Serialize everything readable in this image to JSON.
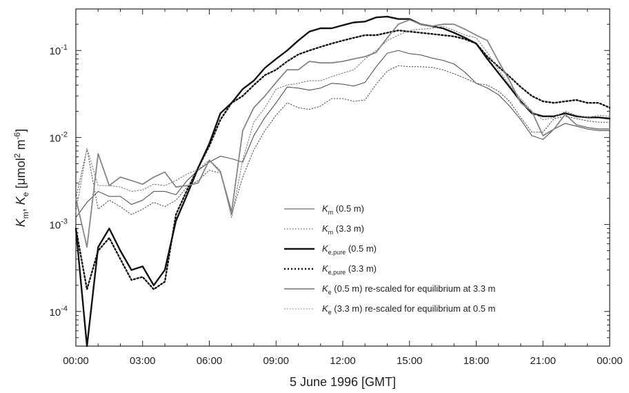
{
  "chart_data": {
    "type": "line",
    "xlabel": "5 June 1996 [GMT]",
    "ylabel": {
      "html": "K_m, K_e [μmol^2 m^-6]",
      "parts": {
        "k1": "K",
        "s1": "m",
        "sep": ", ",
        "k2": "K",
        "s2": "e",
        "open": " [μmol",
        "sup1": "2",
        "mid": " m",
        "sup2": "-6",
        "close": "]"
      }
    },
    "x_range_hours": [
      0,
      24
    ],
    "x_ticks": [
      {
        "h": 0,
        "label": "00:00"
      },
      {
        "h": 3,
        "label": "03:00"
      },
      {
        "h": 6,
        "label": "06:00"
      },
      {
        "h": 9,
        "label": "09:00"
      },
      {
        "h": 12,
        "label": "12:00"
      },
      {
        "h": 15,
        "label": "15:00"
      },
      {
        "h": 18,
        "label": "18:00"
      },
      {
        "h": 21,
        "label": "21:00"
      },
      {
        "h": 24,
        "label": "00:00"
      }
    ],
    "y_scale": "log",
    "y_range": [
      4e-05,
      0.3
    ],
    "y_ticks": [
      {
        "v": 0.0001,
        "base": "10",
        "exp": "-4"
      },
      {
        "v": 0.001,
        "base": "10",
        "exp": "-3"
      },
      {
        "v": 0.01,
        "base": "10",
        "exp": "-2"
      },
      {
        "v": 0.1,
        "base": "10",
        "exp": "-1"
      }
    ],
    "legend_position": "bottom-right",
    "series": [
      {
        "name": "K_m (0.5 m)",
        "legend": {
          "k": "K",
          "sub": "m",
          "rest": " (0.5 m)"
        },
        "color": "#444444",
        "width": 1,
        "dash": "",
        "x": [
          0,
          0.5,
          1,
          1.5,
          2,
          2.5,
          3,
          3.5,
          4,
          4.5,
          5,
          5.5,
          6,
          6.5,
          7,
          7.5,
          8,
          8.5,
          9,
          9.5,
          10,
          10.5,
          11,
          11.5,
          12,
          12.5,
          13,
          13.5,
          14,
          14.5,
          15,
          15.5,
          16,
          16.5,
          17,
          17.5,
          18,
          18.5,
          19,
          19.5,
          20,
          20.5,
          21,
          21.5,
          22,
          22.5,
          23,
          23.5,
          24
        ],
        "y": [
          0.0012,
          0.0018,
          0.0024,
          0.0021,
          0.0021,
          0.0017,
          0.0019,
          0.0024,
          0.0024,
          0.0022,
          0.0032,
          0.0042,
          0.0052,
          0.0061,
          0.0057,
          0.0052,
          0.0105,
          0.017,
          0.025,
          0.038,
          0.037,
          0.035,
          0.037,
          0.042,
          0.041,
          0.039,
          0.043,
          0.065,
          0.093,
          0.1,
          0.092,
          0.089,
          0.082,
          0.077,
          0.07,
          0.056,
          0.042,
          0.037,
          0.031,
          0.023,
          0.016,
          0.0105,
          0.0095,
          0.0125,
          0.0145,
          0.0135,
          0.0125,
          0.012,
          0.012
        ]
      },
      {
        "name": "K_m (3.3 m)",
        "legend": {
          "k": "K",
          "sub": "m",
          "rest": " (3.3 m)"
        },
        "color": "#444444",
        "width": 1,
        "dash": "1.5,2.5",
        "x": [
          0,
          0.5,
          1,
          1.5,
          2,
          2.5,
          3,
          3.5,
          4,
          4.5,
          5,
          5.5,
          6,
          6.5,
          7,
          7.5,
          8,
          8.5,
          9,
          9.5,
          10,
          10.5,
          11,
          11.5,
          12,
          12.5,
          13,
          13.5,
          14,
          14.5,
          15,
          15.5,
          16,
          16.5,
          17,
          17.5,
          18,
          18.5,
          19,
          19.5,
          20,
          20.5,
          21,
          21.5,
          22,
          22.5,
          23,
          23.5,
          24
        ],
        "y": [
          0.002,
          0.0074,
          0.0015,
          0.0019,
          0.0016,
          0.0013,
          0.0015,
          0.0018,
          0.0016,
          0.0019,
          0.0027,
          0.0032,
          0.0042,
          0.0039,
          0.0013,
          0.0035,
          0.0072,
          0.012,
          0.018,
          0.025,
          0.022,
          0.021,
          0.023,
          0.028,
          0.028,
          0.026,
          0.027,
          0.041,
          0.058,
          0.067,
          0.065,
          0.065,
          0.064,
          0.06,
          0.054,
          0.048,
          0.042,
          0.04,
          0.034,
          0.026,
          0.017,
          0.0115,
          0.0115,
          0.0165,
          0.0175,
          0.0165,
          0.0155,
          0.015,
          0.015
        ]
      },
      {
        "name": "K_e,pure (0.5 m)",
        "legend": {
          "k": "K",
          "sub": "e,pure",
          "rest": "  (0.5 m)"
        },
        "color": "#111111",
        "width": 2.4,
        "dash": "",
        "x": [
          0,
          0.5,
          1,
          1.5,
          2,
          2.5,
          3,
          3.5,
          4,
          4.5,
          5,
          5.5,
          6,
          6.5,
          7,
          7.5,
          8,
          8.5,
          9,
          9.5,
          10,
          10.5,
          11,
          11.5,
          12,
          12.5,
          13,
          13.5,
          14,
          14.5,
          15,
          15.5,
          16,
          16.5,
          17,
          17.5,
          18,
          18.5,
          19,
          19.5,
          20,
          20.5,
          21,
          21.5,
          22,
          22.5,
          23,
          23.5,
          24
        ],
        "y": [
          0.0009,
          4e-05,
          0.00055,
          0.0009,
          0.0005,
          0.0003,
          0.00033,
          0.0002,
          0.0003,
          0.0011,
          0.0022,
          0.0045,
          0.0085,
          0.019,
          0.025,
          0.036,
          0.045,
          0.063,
          0.08,
          0.1,
          0.13,
          0.165,
          0.18,
          0.18,
          0.195,
          0.21,
          0.215,
          0.24,
          0.245,
          0.23,
          0.23,
          0.2,
          0.19,
          0.18,
          0.16,
          0.14,
          0.12,
          0.08,
          0.055,
          0.038,
          0.026,
          0.019,
          0.0175,
          0.0175,
          0.019,
          0.0175,
          0.017,
          0.017,
          0.0165
        ]
      },
      {
        "name": "K_e,pure (3.3 m)",
        "legend": {
          "k": "K",
          "sub": "e,pure",
          "rest": "  (3.3 m)"
        },
        "color": "#111111",
        "width": 2.4,
        "dash": "2,3",
        "x": [
          0,
          0.5,
          1,
          1.5,
          2,
          2.5,
          3,
          3.5,
          4,
          4.5,
          5,
          5.5,
          6,
          6.5,
          7,
          7.5,
          8,
          8.5,
          9,
          9.5,
          10,
          10.5,
          11,
          11.5,
          12,
          12.5,
          13,
          13.5,
          14,
          14.5,
          15,
          15.5,
          16,
          16.5,
          17,
          17.5,
          18,
          18.5,
          19,
          19.5,
          20,
          20.5,
          21,
          21.5,
          22,
          22.5,
          23,
          23.5,
          24
        ],
        "y": [
          0.0009,
          0.00018,
          0.0005,
          0.0007,
          0.0004,
          0.00023,
          0.00025,
          0.00018,
          0.00022,
          0.0013,
          0.0025,
          0.0045,
          0.008,
          0.016,
          0.025,
          0.03,
          0.04,
          0.052,
          0.06,
          0.075,
          0.09,
          0.1,
          0.11,
          0.12,
          0.13,
          0.14,
          0.15,
          0.15,
          0.16,
          0.17,
          0.165,
          0.16,
          0.155,
          0.15,
          0.145,
          0.135,
          0.12,
          0.085,
          0.065,
          0.05,
          0.038,
          0.03,
          0.026,
          0.025,
          0.026,
          0.027,
          0.025,
          0.025,
          0.022
        ]
      },
      {
        "name": "K_e (0.5 m) re-scaled for equilibrium at 3.3 m",
        "legend": {
          "k": "K",
          "sub": "e",
          "rest": " (0.5 m) re-scaled for equilibrium at 3.3 m"
        },
        "color": "#8a8282",
        "width": 1.8,
        "dash": "",
        "x": [
          0,
          0.5,
          1,
          1.5,
          2,
          2.5,
          3,
          3.5,
          4,
          4.5,
          5,
          5.5,
          6,
          6.5,
          7,
          7.5,
          8,
          8.5,
          9,
          9.5,
          10,
          10.5,
          11,
          11.5,
          12,
          12.5,
          13,
          13.5,
          14,
          14.5,
          15,
          15.5,
          16,
          16.5,
          17,
          17.5,
          18,
          18.5,
          19,
          19.5,
          20,
          20.5,
          21,
          21.5,
          22,
          22.5,
          23,
          23.5,
          24
        ],
        "y": [
          0.002,
          0.00055,
          0.0065,
          0.0028,
          0.0035,
          0.0032,
          0.0029,
          0.0035,
          0.004,
          0.0027,
          0.0028,
          0.003,
          0.0055,
          0.004,
          0.0014,
          0.012,
          0.022,
          0.03,
          0.043,
          0.06,
          0.06,
          0.075,
          0.072,
          0.072,
          0.075,
          0.08,
          0.085,
          0.095,
          0.14,
          0.2,
          0.225,
          0.2,
          0.19,
          0.2,
          0.2,
          0.175,
          0.15,
          0.13,
          0.075,
          0.045,
          0.025,
          0.02,
          0.0105,
          0.0125,
          0.0185,
          0.014,
          0.013,
          0.0125,
          0.0125
        ]
      },
      {
        "name": "K_e (3.3 m) re-scaled for equilibrium at 0.5 m",
        "legend": {
          "k": "K",
          "sub": "e",
          "rest": " (3.3 m) re-scaled for equilibrium at 0.5 m"
        },
        "color": "#8a8282",
        "width": 1.2,
        "dash": "1.5,2.5",
        "x": [
          0,
          0.5,
          1,
          1.5,
          2,
          2.5,
          3,
          3.5,
          4,
          4.5,
          5,
          5.5,
          6,
          6.5,
          7,
          7.5,
          8,
          8.5,
          9,
          9.5,
          10,
          10.5,
          11,
          11.5,
          12,
          12.5,
          13,
          13.5,
          14,
          14.5,
          15,
          15.5,
          16,
          16.5,
          17,
          17.5,
          18,
          18.5,
          19,
          19.5,
          20,
          20.5,
          21,
          21.5,
          22,
          22.5,
          23,
          23.5,
          24
        ],
        "y": [
          0.0014,
          0.0075,
          0.0028,
          0.0028,
          0.0027,
          0.0024,
          0.0025,
          0.0029,
          0.0028,
          0.0032,
          0.0038,
          0.0043,
          0.0055,
          0.0042,
          0.0012,
          0.0055,
          0.015,
          0.022,
          0.036,
          0.04,
          0.042,
          0.045,
          0.045,
          0.05,
          0.055,
          0.06,
          0.08,
          0.1,
          0.13,
          0.15,
          0.17,
          0.175,
          0.18,
          0.19,
          0.17,
          0.15,
          0.14,
          0.095,
          0.06,
          0.04,
          0.028,
          0.02,
          0.016,
          0.017,
          0.02,
          0.018,
          0.017,
          0.018,
          0.0175
        ]
      }
    ]
  }
}
